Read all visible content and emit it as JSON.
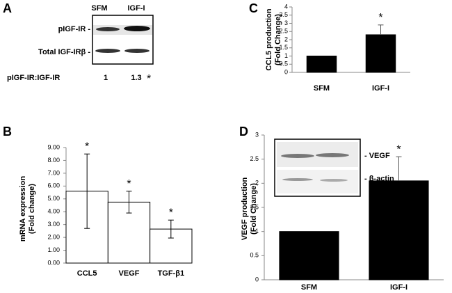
{
  "panel_a": {
    "panel_label": "A",
    "lanes": [
      "SFM",
      "IGF-I"
    ],
    "bands": [
      "pIGF-IR -",
      "Total IGF-IRβ -"
    ],
    "ratio_label": "pIGF-IR:IGF-IR",
    "ratios": [
      1,
      1.3
    ],
    "ratio_note": "*"
  },
  "chart_data": [
    {
      "type": "bar",
      "panel_label": "C",
      "y_label": [
        "CCL5 production",
        "(Fold Change)"
      ],
      "categories": [
        "SFM",
        "IGF-I"
      ],
      "values": [
        1,
        2.3
      ],
      "errors": [
        null,
        0.6
      ],
      "significance": [
        null,
        "*"
      ],
      "color": "#000000",
      "ylim": [
        0,
        4
      ],
      "yticks": [
        0,
        0.5,
        1,
        1.5,
        2,
        2.5,
        3,
        3.5,
        4
      ]
    },
    {
      "type": "bar",
      "panel_label": "B",
      "y_label": [
        "mRNA expression",
        "(Fold change)"
      ],
      "categories": [
        "CCL5",
        "VEGF",
        "TGF-β1"
      ],
      "values": [
        5.6,
        4.75,
        2.65
      ],
      "errors": [
        2.9,
        0.85,
        0.7
      ],
      "significance": [
        "*",
        "*",
        "*"
      ],
      "color": "#ffffff",
      "ylim": [
        0,
        9
      ],
      "yticks": [
        {
          "value": 0,
          "label": "0.00"
        },
        {
          "value": 1,
          "label": "1.00"
        },
        {
          "value": 2,
          "label": "2.00"
        },
        {
          "value": 3,
          "label": "3.00"
        },
        {
          "value": 4,
          "label": "4.00"
        },
        {
          "value": 5,
          "label": "5.00"
        },
        {
          "value": 6,
          "label": "6.00"
        },
        {
          "value": 7,
          "label": "7.00"
        },
        {
          "value": 8,
          "label": "8.00"
        },
        {
          "value": 9,
          "label": "9.00"
        }
      ]
    },
    {
      "type": "bar",
      "panel_label": "D",
      "y_label": [
        "VEGF production",
        "(Fold Change)"
      ],
      "categories": [
        "SFM",
        "IGF-I"
      ],
      "values": [
        1,
        2.05
      ],
      "errors": [
        null,
        0.5
      ],
      "significance": [
        null,
        "*"
      ],
      "color": "#000000",
      "ylim": [
        0,
        3
      ],
      "yticks": [
        0,
        0.5,
        1,
        1.5,
        2,
        2.5,
        3
      ],
      "inset_labels": [
        "- VEGF",
        "- β-actin"
      ]
    }
  ]
}
